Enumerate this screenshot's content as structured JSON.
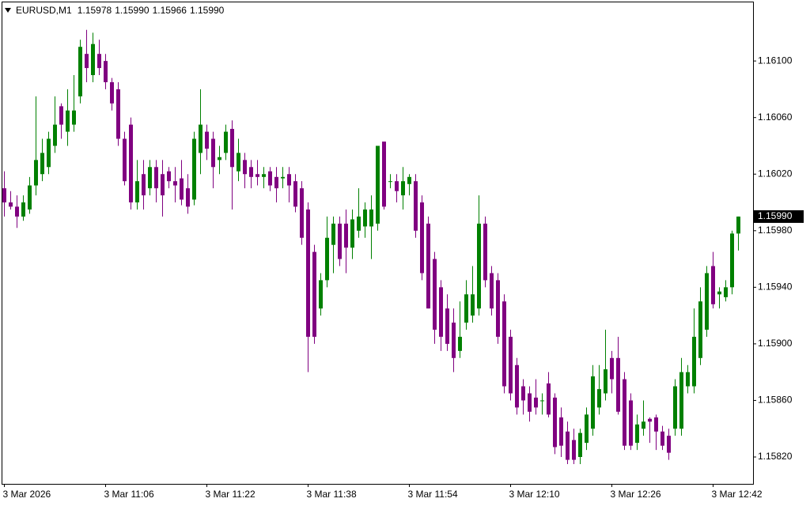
{
  "chart_data": {
    "type": "candlestick",
    "title": "EURUSD,M1",
    "quote": [
      "1.15978",
      "1.15990",
      "1.15966",
      "1.15990"
    ],
    "last_price": {
      "value": 1.1599,
      "label": "1.15990"
    },
    "up_color": "#008000",
    "down_color": "#800080",
    "ylim": [
      1.15801,
      1.16142
    ],
    "yticks": [
      {
        "value": 1.161,
        "label": "1.16100"
      },
      {
        "value": 1.1606,
        "label": "1.16060"
      },
      {
        "value": 1.1602,
        "label": "1.16020"
      },
      {
        "value": 1.1598,
        "label": "1.15980"
      },
      {
        "value": 1.1594,
        "label": "1.15940"
      },
      {
        "value": 1.159,
        "label": "1.15900"
      },
      {
        "value": 1.1586,
        "label": "1.15860"
      },
      {
        "value": 1.1582,
        "label": "1.15820"
      }
    ],
    "categories": [
      "3 Mar 2026",
      null,
      null,
      null,
      null,
      null,
      null,
      null,
      null,
      null,
      null,
      null,
      null,
      null,
      null,
      null,
      "3 Mar 11:06",
      null,
      null,
      null,
      null,
      null,
      null,
      null,
      null,
      null,
      null,
      null,
      null,
      null,
      null,
      null,
      "3 Mar 11:22",
      null,
      null,
      null,
      null,
      null,
      null,
      null,
      null,
      null,
      null,
      null,
      null,
      null,
      null,
      null,
      "3 Mar 11:38",
      null,
      null,
      null,
      null,
      null,
      null,
      null,
      null,
      null,
      null,
      null,
      null,
      null,
      null,
      null,
      "3 Mar 11:54",
      null,
      null,
      null,
      null,
      null,
      null,
      null,
      null,
      null,
      null,
      null,
      null,
      null,
      null,
      null,
      "3 Mar 12:10",
      null,
      null,
      null,
      null,
      null,
      null,
      null,
      null,
      null,
      null,
      null,
      null,
      null,
      null,
      null,
      "3 Mar 12:26",
      null,
      null,
      null,
      null,
      null,
      null,
      null,
      null,
      null,
      null,
      null,
      null,
      null,
      null,
      null,
      "3 Mar 12:42",
      null,
      null,
      null,
      null
    ],
    "open": [
      1.1601,
      1.16,
      1.15997,
      1.1599,
      1.15995,
      1.16012,
      1.1602,
      1.16025,
      1.1604,
      1.16068,
      1.1605,
      1.16055,
      1.16075,
      1.16105,
      1.1609,
      1.16105,
      1.161,
      1.16085,
      1.1608,
      1.16045,
      1.16055,
      1.16,
      1.1602,
      1.1601,
      1.16025,
      1.1602,
      1.16022,
      1.16015,
      1.16017,
      1.1601,
      1.16002,
      1.16035,
      1.1605,
      1.16045,
      1.1603,
      1.16035,
      1.16052,
      1.16022,
      1.1603,
      1.16025,
      1.1602,
      1.16018,
      1.16022,
      1.16018,
      1.16017,
      1.1602,
      1.16015,
      1.1601,
      1.15995,
      1.15965,
      1.15925,
      1.15945,
      1.1597,
      1.15985,
      1.15985,
      1.15968,
      1.1598,
      1.15983,
      1.15983,
      1.15985,
      1.16043,
      1.16015,
      1.16015,
      1.16005,
      1.16013,
      1.16015,
      1.16,
      1.15985,
      1.1596,
      1.1594,
      1.15925,
      1.15915,
      1.15895,
      1.15915,
      1.1592,
      1.15925,
      1.15985,
      1.1595,
      1.15945,
      1.1593,
      1.15905,
      1.15885,
      1.1587,
      1.15865,
      1.15862,
      1.1586,
      1.15872,
      1.15862,
      1.15848,
      1.15838,
      1.15832,
      1.1582,
      1.1583,
      1.1584,
      1.15855,
      1.15865,
      1.1589,
      1.1589,
      1.15875,
      1.1586,
      1.1583,
      1.1584,
      1.15847,
      1.15848,
      1.15838,
      1.15835,
      1.1584,
      1.1584,
      1.1587,
      1.1587,
      1.1589,
      1.1591,
      1.15955,
      1.15935,
      1.15933,
      1.1594,
      1.15978
    ],
    "high": [
      1.16022,
      1.16008,
      1.16005,
      1.16005,
      1.16018,
      1.16075,
      1.16045,
      1.1605,
      1.16075,
      1.1607,
      1.1608,
      1.1609,
      1.16115,
      1.16122,
      1.1612,
      1.16115,
      1.16105,
      1.16088,
      1.16085,
      1.1605,
      1.1606,
      1.1603,
      1.1603,
      1.1603,
      1.1603,
      1.1603,
      1.16025,
      1.16025,
      1.1603,
      1.1602,
      1.1605,
      1.1608,
      1.16055,
      1.1605,
      1.1604,
      1.16055,
      1.16058,
      1.16045,
      1.16035,
      1.1603,
      1.1603,
      1.16025,
      1.16025,
      1.16025,
      1.16025,
      1.16025,
      1.1602,
      1.16015,
      1.16,
      1.1597,
      1.1595,
      1.1599,
      1.1599,
      1.1599,
      1.15995,
      1.15995,
      1.1601,
      1.16,
      1.16005,
      1.1604,
      1.16043,
      1.1602,
      1.1602,
      1.16025,
      1.1602,
      1.1602,
      1.16005,
      1.1599,
      1.15965,
      1.15945,
      1.15935,
      1.15925,
      1.1593,
      1.15945,
      1.15955,
      1.16005,
      1.1599,
      1.15955,
      1.1595,
      1.15935,
      1.1591,
      1.1589,
      1.15875,
      1.1587,
      1.15875,
      1.15865,
      1.1588,
      1.15865,
      1.15855,
      1.15845,
      1.1584,
      1.1584,
      1.15855,
      1.15885,
      1.15885,
      1.1591,
      1.15895,
      1.15905,
      1.1588,
      1.15865,
      1.1585,
      1.1586,
      1.15848,
      1.1585,
      1.15842,
      1.1584,
      1.15875,
      1.1589,
      1.15885,
      1.15925,
      1.1594,
      1.15955,
      1.15965,
      1.1594,
      1.15945,
      1.1598,
      1.1599
    ],
    "low": [
      1.1599,
      1.15995,
      1.15982,
      1.15987,
      1.15992,
      1.16005,
      1.16015,
      1.1602,
      1.16035,
      1.16045,
      1.1604,
      1.1605,
      1.1607,
      1.16085,
      1.16085,
      1.1609,
      1.1608,
      1.16065,
      1.1604,
      1.16012,
      1.15995,
      1.15995,
      1.15995,
      1.16005,
      1.16,
      1.1599,
      1.1601,
      1.16,
      1.15998,
      1.15992,
      1.15998,
      1.1602,
      1.1603,
      1.1601,
      1.1602,
      1.1603,
      1.15995,
      1.16015,
      1.1601,
      1.1601,
      1.16012,
      1.1601,
      1.16008,
      1.16,
      1.1601,
      1.16,
      1.15993,
      1.1597,
      1.1588,
      1.159,
      1.1592,
      1.1594,
      1.1595,
      1.15955,
      1.1595,
      1.1596,
      1.15975,
      1.15975,
      1.1596,
      1.1598,
      1.15995,
      1.1601,
      1.16,
      1.15995,
      1.16005,
      1.15975,
      1.15945,
      1.15925,
      1.159,
      1.15895,
      1.15895,
      1.1588,
      1.1589,
      1.1591,
      1.15915,
      1.1592,
      1.1594,
      1.1592,
      1.159,
      1.15865,
      1.1586,
      1.1585,
      1.1585,
      1.15845,
      1.1585,
      1.1585,
      1.15848,
      1.15822,
      1.1582,
      1.15815,
      1.15815,
      1.15815,
      1.15825,
      1.15835,
      1.1585,
      1.1586,
      1.15865,
      1.1585,
      1.15825,
      1.15825,
      1.15825,
      1.15835,
      1.1583,
      1.15825,
      1.15825,
      1.15818,
      1.15835,
      1.15835,
      1.15865,
      1.15865,
      1.15885,
      1.15905,
      1.15925,
      1.15925,
      1.1593,
      1.15935,
      1.15966
    ],
    "close": [
      1.16,
      1.15997,
      1.1599,
      1.16,
      1.16012,
      1.1603,
      1.16035,
      1.16045,
      1.16055,
      1.16055,
      1.16065,
      1.16065,
      1.1611,
      1.16095,
      1.16112,
      1.16095,
      1.16085,
      1.1607,
      1.16045,
      1.16015,
      1.16,
      1.16015,
      1.16005,
      1.16025,
      1.1601,
      1.16005,
      1.16015,
      1.16012,
      1.16002,
      1.15997,
      1.16045,
      1.16055,
      1.16038,
      1.16025,
      1.16032,
      1.1605,
      1.16025,
      1.16035,
      1.1602,
      1.16018,
      1.16018,
      1.1602,
      1.16012,
      1.1601,
      1.16018,
      1.16012,
      1.15997,
      1.15975,
      1.15905,
      1.15905,
      1.15945,
      1.15975,
      1.15985,
      1.1596,
      1.15968,
      1.15988,
      1.1599,
      1.15995,
      1.15995,
      1.1604,
      1.15997,
      1.16015,
      1.16008,
      1.16015,
      1.16018,
      1.1598,
      1.1595,
      1.15925,
      1.1591,
      1.15905,
      1.159,
      1.1589,
      1.15905,
      1.15935,
      1.15935,
      1.15985,
      1.15945,
      1.15925,
      1.15905,
      1.1587,
      1.15865,
      1.15855,
      1.1586,
      1.15852,
      1.15855,
      1.1586,
      1.1585,
      1.15827,
      1.15828,
      1.15818,
      1.15818,
      1.15837,
      1.1585,
      1.15877,
      1.15868,
      1.15882,
      1.15875,
      1.15852,
      1.15828,
      1.15828,
      1.15843,
      1.15845,
      1.15845,
      1.15838,
      1.15828,
      1.15823,
      1.1587,
      1.1588,
      1.1588,
      1.15905,
      1.1593,
      1.1595,
      1.15928,
      1.15937,
      1.1594,
      1.15978,
      1.1599
    ]
  }
}
